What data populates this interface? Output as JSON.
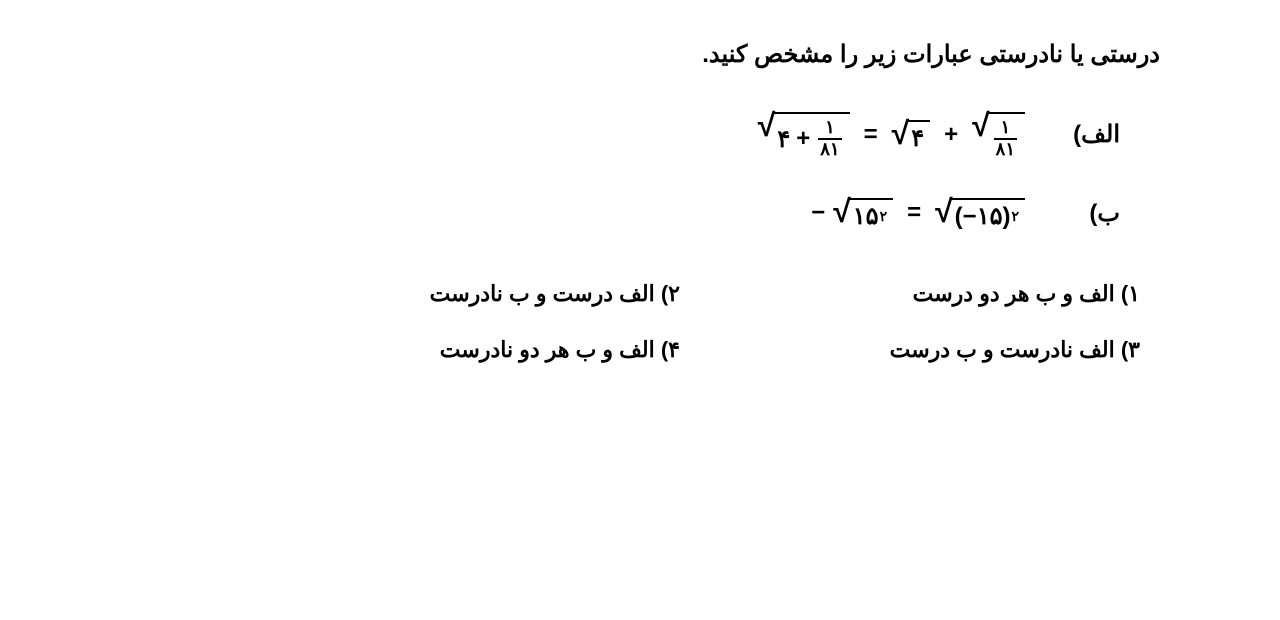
{
  "colors": {
    "text": "#000000",
    "background": "#ffffff"
  },
  "typography": {
    "title_fontsize": 24,
    "equation_fontsize": 24,
    "option_fontsize": 22,
    "font_weight": "bold"
  },
  "question": {
    "title": "درستی یا نادرستی عبارات زیر را مشخص کنید."
  },
  "equations": {
    "a": {
      "label": "الف)",
      "lhs_root_int": "۴",
      "lhs_root_plus": "+",
      "lhs_root_frac_num": "۱",
      "lhs_root_frac_den": "۸۱",
      "equals": "=",
      "rhs_sqrt1": "۴",
      "rhs_plus": "+",
      "rhs_sqrt2_frac_num": "۱",
      "rhs_sqrt2_frac_den": "۸۱"
    },
    "b": {
      "label": "ب)",
      "lhs_neg": "−",
      "lhs_sqrt_base": "۱۵",
      "lhs_sqrt_exp": "۲",
      "equals": "=",
      "rhs_sqrt_open": "(−",
      "rhs_sqrt_val": "۱۵",
      "rhs_sqrt_close": ")",
      "rhs_sqrt_exp": "۲"
    }
  },
  "options": {
    "o1": "۱)  الف و ب هر دو درست",
    "o2": "۲)  الف درست و ب نادرست",
    "o3": "۳)  الف نادرست و ب درست",
    "o4": "۴)  الف و ب هر دو نادرست"
  }
}
